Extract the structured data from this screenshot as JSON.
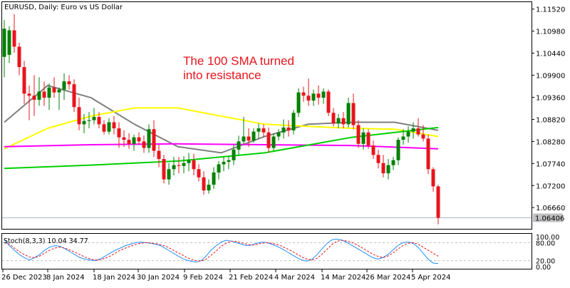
{
  "chart_data": {
    "type": "candlestick",
    "symbol_title": "EURUSD, Daily:  Euro vs US Dollar",
    "annotation": [
      "The 100 SMA turned",
      "into resistance"
    ],
    "last_price_label": "1.06406",
    "ylim": [
      1.0614,
      1.1169
    ],
    "y_ticks": [
      "1.11520",
      "1.10980",
      "1.10440",
      "1.09900",
      "1.09360",
      "1.08820",
      "1.08280",
      "1.07740",
      "1.07200",
      "1.06660"
    ],
    "x_tick_labels": [
      "26 Dec 2023",
      "8 Jan 2024",
      "18 Jan 2024",
      "30 Jan 2024",
      "9 Feb 2024",
      "21 Feb 2024",
      "4 Mar 2024",
      "14 Mar 2024",
      "26 Mar 2024",
      "5 Apr 2024"
    ],
    "candles": [
      {
        "o": 1.1035,
        "h": 1.1125,
        "l": 1.0985,
        "c": 1.1104
      },
      {
        "o": 1.104,
        "h": 1.111,
        "l": 1.102,
        "c": 1.11
      },
      {
        "o": 1.11,
        "h": 1.114,
        "l": 1.1045,
        "c": 1.106
      },
      {
        "o": 1.106,
        "h": 1.107,
        "l": 1.099,
        "c": 1.101
      },
      {
        "o": 1.101,
        "h": 1.1025,
        "l": 1.092,
        "c": 1.0945
      },
      {
        "o": 1.0945,
        "h": 1.0965,
        "l": 1.088,
        "c": 1.094
      },
      {
        "o": 1.094,
        "h": 1.099,
        "l": 1.089,
        "c": 1.093
      },
      {
        "o": 1.093,
        "h": 1.0985,
        "l": 1.0915,
        "c": 1.095
      },
      {
        "o": 1.095,
        "h": 1.0975,
        "l": 1.0915,
        "c": 1.0935
      },
      {
        "o": 1.0935,
        "h": 1.097,
        "l": 1.0905,
        "c": 1.096
      },
      {
        "o": 1.096,
        "h": 1.0985,
        "l": 1.0935,
        "c": 1.0948
      },
      {
        "o": 1.0948,
        "h": 1.096,
        "l": 1.0905,
        "c": 1.0955
      },
      {
        "o": 1.0955,
        "h": 1.0995,
        "l": 1.093,
        "c": 1.0975
      },
      {
        "o": 1.0975,
        "h": 1.099,
        "l": 1.0955,
        "c": 1.0968
      },
      {
        "o": 1.0968,
        "h": 1.098,
        "l": 1.09,
        "c": 1.0912
      },
      {
        "o": 1.0912,
        "h": 1.0935,
        "l": 1.0855,
        "c": 1.087
      },
      {
        "o": 1.087,
        "h": 1.0895,
        "l": 1.0848,
        "c": 1.0878
      },
      {
        "o": 1.0878,
        "h": 1.09,
        "l": 1.086,
        "c": 1.088
      },
      {
        "o": 1.088,
        "h": 1.091,
        "l": 1.087,
        "c": 1.0888
      },
      {
        "o": 1.0888,
        "h": 1.09,
        "l": 1.086,
        "c": 1.087
      },
      {
        "o": 1.087,
        "h": 1.088,
        "l": 1.0845,
        "c": 1.0852
      },
      {
        "o": 1.0852,
        "h": 1.0885,
        "l": 1.0845,
        "c": 1.0875
      },
      {
        "o": 1.0875,
        "h": 1.089,
        "l": 1.0845,
        "c": 1.086
      },
      {
        "o": 1.086,
        "h": 1.0875,
        "l": 1.0812,
        "c": 1.0838
      },
      {
        "o": 1.0838,
        "h": 1.0855,
        "l": 1.0815,
        "c": 1.0832
      },
      {
        "o": 1.0832,
        "h": 1.0848,
        "l": 1.081,
        "c": 1.0822
      },
      {
        "o": 1.0822,
        "h": 1.0845,
        "l": 1.0805,
        "c": 1.0838
      },
      {
        "o": 1.0838,
        "h": 1.085,
        "l": 1.082,
        "c": 1.0828
      },
      {
        "o": 1.0828,
        "h": 1.0842,
        "l": 1.08,
        "c": 1.0812
      },
      {
        "o": 1.0812,
        "h": 1.087,
        "l": 1.08,
        "c": 1.0858
      },
      {
        "o": 1.0858,
        "h": 1.088,
        "l": 1.079,
        "c": 1.0805
      },
      {
        "o": 1.0805,
        "h": 1.082,
        "l": 1.0765,
        "c": 1.0785
      },
      {
        "o": 1.0785,
        "h": 1.0795,
        "l": 1.0725,
        "c": 1.0735
      },
      {
        "o": 1.0735,
        "h": 1.0775,
        "l": 1.0722,
        "c": 1.076
      },
      {
        "o": 1.076,
        "h": 1.079,
        "l": 1.0745,
        "c": 1.077
      },
      {
        "o": 1.077,
        "h": 1.079,
        "l": 1.075,
        "c": 1.0768
      },
      {
        "o": 1.0768,
        "h": 1.0792,
        "l": 1.075,
        "c": 1.0775
      },
      {
        "o": 1.0775,
        "h": 1.08,
        "l": 1.0755,
        "c": 1.0782
      },
      {
        "o": 1.0782,
        "h": 1.0798,
        "l": 1.0745,
        "c": 1.076
      },
      {
        "o": 1.076,
        "h": 1.0772,
        "l": 1.073,
        "c": 1.074
      },
      {
        "o": 1.074,
        "h": 1.0755,
        "l": 1.0698,
        "c": 1.0708
      },
      {
        "o": 1.0708,
        "h": 1.0735,
        "l": 1.07,
        "c": 1.0722
      },
      {
        "o": 1.0722,
        "h": 1.0765,
        "l": 1.0712,
        "c": 1.0752
      },
      {
        "o": 1.0752,
        "h": 1.078,
        "l": 1.0735,
        "c": 1.0772
      },
      {
        "o": 1.0772,
        "h": 1.079,
        "l": 1.0755,
        "c": 1.0778
      },
      {
        "o": 1.0778,
        "h": 1.0792,
        "l": 1.076,
        "c": 1.0782
      },
      {
        "o": 1.0782,
        "h": 1.082,
        "l": 1.077,
        "c": 1.0808
      },
      {
        "o": 1.0808,
        "h": 1.0842,
        "l": 1.0795,
        "c": 1.0828
      },
      {
        "o": 1.0828,
        "h": 1.0888,
        "l": 1.082,
        "c": 1.084
      },
      {
        "o": 1.084,
        "h": 1.086,
        "l": 1.0815,
        "c": 1.083
      },
      {
        "o": 1.083,
        "h": 1.086,
        "l": 1.0825,
        "c": 1.0852
      },
      {
        "o": 1.0852,
        "h": 1.0872,
        "l": 1.0835,
        "c": 1.086
      },
      {
        "o": 1.086,
        "h": 1.087,
        "l": 1.0838,
        "c": 1.085
      },
      {
        "o": 1.085,
        "h": 1.0862,
        "l": 1.08,
        "c": 1.0812
      },
      {
        "o": 1.0812,
        "h": 1.0848,
        "l": 1.0805,
        "c": 1.084
      },
      {
        "o": 1.084,
        "h": 1.0858,
        "l": 1.083,
        "c": 1.085
      },
      {
        "o": 1.085,
        "h": 1.0882,
        "l": 1.0835,
        "c": 1.0862
      },
      {
        "o": 1.0862,
        "h": 1.088,
        "l": 1.084,
        "c": 1.0855
      },
      {
        "o": 1.0855,
        "h": 1.0905,
        "l": 1.0845,
        "c": 1.0898
      },
      {
        "o": 1.0898,
        "h": 1.0958,
        "l": 1.0888,
        "c": 1.0948
      },
      {
        "o": 1.0948,
        "h": 1.0962,
        "l": 1.0925,
        "c": 1.094
      },
      {
        "o": 1.094,
        "h": 1.0982,
        "l": 1.0915,
        "c": 1.0928
      },
      {
        "o": 1.0928,
        "h": 1.0955,
        "l": 1.0915,
        "c": 1.0945
      },
      {
        "o": 1.0945,
        "h": 1.0965,
        "l": 1.0918,
        "c": 1.0935
      },
      {
        "o": 1.0935,
        "h": 1.0958,
        "l": 1.092,
        "c": 1.095
      },
      {
        "o": 1.095,
        "h": 1.0955,
        "l": 1.089,
        "c": 1.0898
      },
      {
        "o": 1.0898,
        "h": 1.091,
        "l": 1.0865,
        "c": 1.0872
      },
      {
        "o": 1.0872,
        "h": 1.0895,
        "l": 1.086,
        "c": 1.0885
      },
      {
        "o": 1.0885,
        "h": 1.09,
        "l": 1.086,
        "c": 1.087
      },
      {
        "o": 1.087,
        "h": 1.0935,
        "l": 1.0862,
        "c": 1.0922
      },
      {
        "o": 1.0922,
        "h": 1.0945,
        "l": 1.0858,
        "c": 1.0868
      },
      {
        "o": 1.0868,
        "h": 1.088,
        "l": 1.0812,
        "c": 1.0822
      },
      {
        "o": 1.0822,
        "h": 1.086,
        "l": 1.0808,
        "c": 1.085
      },
      {
        "o": 1.085,
        "h": 1.0858,
        "l": 1.081,
        "c": 1.0818
      },
      {
        "o": 1.0818,
        "h": 1.083,
        "l": 1.0785,
        "c": 1.0795
      },
      {
        "o": 1.0795,
        "h": 1.0808,
        "l": 1.0762,
        "c": 1.0775
      },
      {
        "o": 1.0775,
        "h": 1.0795,
        "l": 1.074,
        "c": 1.075
      },
      {
        "o": 1.075,
        "h": 1.0785,
        "l": 1.0735,
        "c": 1.077
      },
      {
        "o": 1.077,
        "h": 1.079,
        "l": 1.0758,
        "c": 1.0782
      },
      {
        "o": 1.0782,
        "h": 1.0838,
        "l": 1.077,
        "c": 1.0832
      },
      {
        "o": 1.0832,
        "h": 1.0858,
        "l": 1.082,
        "c": 1.084
      },
      {
        "o": 1.084,
        "h": 1.0865,
        "l": 1.0825,
        "c": 1.0852
      },
      {
        "o": 1.0852,
        "h": 1.0875,
        "l": 1.0835,
        "c": 1.086
      },
      {
        "o": 1.086,
        "h": 1.0885,
        "l": 1.084,
        "c": 1.0845
      },
      {
        "o": 1.0845,
        "h": 1.0868,
        "l": 1.0828,
        "c": 1.0835
      },
      {
        "o": 1.0835,
        "h": 1.0845,
        "l": 1.0748,
        "c": 1.076
      },
      {
        "o": 1.076,
        "h": 1.0765,
        "l": 1.0705,
        "c": 1.0718
      },
      {
        "o": 1.0718,
        "h": 1.0722,
        "l": 1.0625,
        "c": 1.0641
      }
    ],
    "series": [
      {
        "name": "",
        "color": "#7f7f7f",
        "values": [
          [
            0,
            1.0875
          ],
          [
            12,
            1.0965
          ],
          [
            24,
            1.0935
          ],
          [
            36,
            1.087
          ],
          [
            48,
            1.0815
          ],
          [
            60,
            1.08
          ],
          [
            72,
            1.084
          ],
          [
            84,
            1.087
          ],
          [
            96,
            1.0875
          ],
          [
            108,
            1.0875
          ],
          [
            120,
            1.0855
          ]
        ]
      },
      {
        "name": "",
        "color": "#ffff00",
        "values": [
          [
            0,
            1.081
          ],
          [
            12,
            1.086
          ],
          [
            24,
            1.089
          ],
          [
            36,
            1.091
          ],
          [
            48,
            1.091
          ],
          [
            60,
            1.089
          ],
          [
            72,
            1.087
          ],
          [
            84,
            1.0865
          ],
          [
            96,
            1.086
          ],
          [
            108,
            1.0858
          ],
          [
            120,
            1.084
          ]
        ]
      },
      {
        "name": "",
        "color": "#ff00ff",
        "values": [
          [
            0,
            1.0815
          ],
          [
            24,
            1.082
          ],
          [
            48,
            1.0822
          ],
          [
            72,
            1.082
          ],
          [
            96,
            1.0818
          ],
          [
            120,
            1.081
          ]
        ]
      },
      {
        "name": "",
        "color": "#00d000",
        "values": [
          [
            0,
            1.0762
          ],
          [
            24,
            1.077
          ],
          [
            48,
            1.078
          ],
          [
            72,
            1.08
          ],
          [
            96,
            1.0838
          ],
          [
            120,
            1.0862
          ]
        ]
      }
    ],
    "stochastic": {
      "label": "Stoch(8,3,3) 10.04 34.77",
      "levels": [
        "100.00",
        "80.00",
        "20.00",
        "0.00"
      ],
      "main": [
        90,
        70,
        55,
        40,
        30,
        22,
        30,
        40,
        55,
        65,
        70,
        68,
        60,
        50,
        40,
        30,
        25,
        22,
        20,
        25,
        35,
        45,
        55,
        62,
        70,
        75,
        80,
        82,
        80,
        78,
        75,
        70,
        60,
        50,
        40,
        30,
        22,
        18,
        15,
        20,
        35,
        55,
        70,
        82,
        88,
        85,
        80,
        75,
        70,
        72,
        78,
        82,
        80,
        75,
        68,
        60,
        50,
        40,
        30,
        22,
        18,
        25,
        40,
        60,
        78,
        90,
        92,
        88,
        80,
        70,
        60,
        50,
        40,
        30,
        25,
        30,
        40,
        55,
        70,
        80,
        82,
        78,
        65,
        45,
        25,
        12,
        10
      ],
      "signal": [
        80,
        75,
        62,
        50,
        40,
        32,
        30,
        35,
        45,
        55,
        62,
        65,
        62,
        55,
        48,
        40,
        32,
        26,
        22,
        23,
        28,
        35,
        45,
        55,
        62,
        68,
        74,
        78,
        80,
        79,
        77,
        73,
        68,
        60,
        50,
        42,
        32,
        25,
        20,
        18,
        25,
        38,
        52,
        68,
        78,
        85,
        84,
        80,
        75,
        72,
        74,
        78,
        80,
        78,
        74,
        68,
        60,
        52,
        42,
        32,
        25,
        22,
        28,
        42,
        58,
        75,
        85,
        88,
        85,
        80,
        72,
        62,
        52,
        42,
        35,
        30,
        35,
        45,
        58,
        70,
        78,
        80,
        75,
        65,
        55,
        45,
        34.77
      ]
    }
  }
}
